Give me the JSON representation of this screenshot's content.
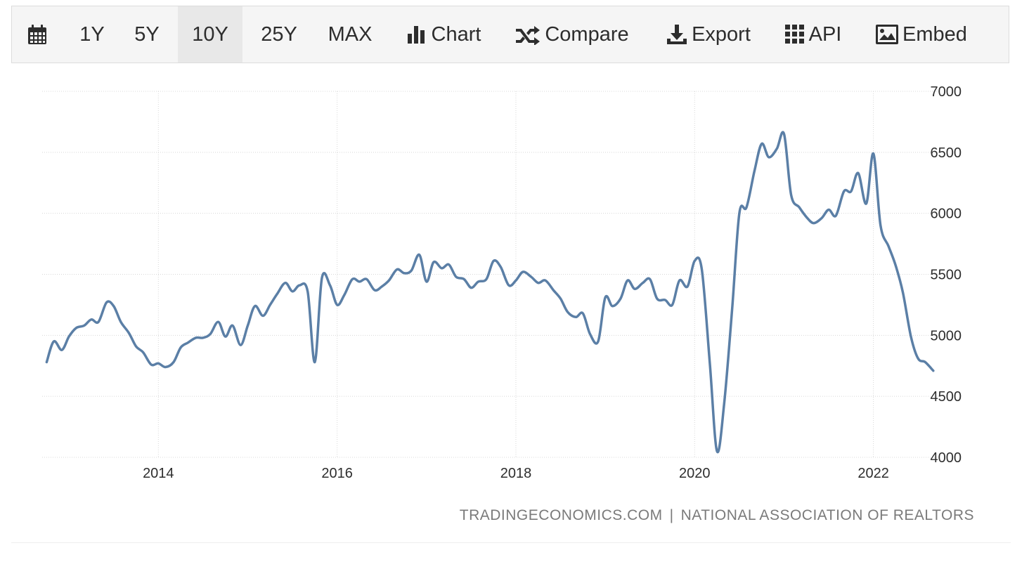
{
  "toolbar": {
    "calendar_icon": "calendar-icon",
    "ranges": [
      "1Y",
      "5Y",
      "10Y",
      "25Y",
      "MAX"
    ],
    "active_range": "10Y",
    "chart_label": "Chart",
    "compare_label": "Compare",
    "export_label": "Export",
    "api_label": "API",
    "embed_label": "Embed"
  },
  "source": {
    "site": "TRADINGECONOMICS.COM",
    "separator": "|",
    "org": "NATIONAL ASSOCIATION OF REALTORS"
  },
  "colors": {
    "line": "#5b7fa6",
    "grid": "#d8d8d8",
    "text": "#2d2d2d",
    "source": "#7a7a7a"
  },
  "chart_data": {
    "type": "line",
    "title": "",
    "xlabel": "",
    "ylabel": "",
    "ylim": [
      4000,
      7000
    ],
    "xlim": [
      2012.7,
      2022.75
    ],
    "yticks": [
      "4000",
      "4500",
      "5000",
      "5500",
      "6000",
      "6500",
      "7000"
    ],
    "xticks": [
      "2014",
      "2016",
      "2018",
      "2020",
      "2022"
    ],
    "grid": true,
    "y_axis_side": "right",
    "series": [
      {
        "name": "",
        "x": [
          2012.75,
          2012.83,
          2012.92,
          2013.0,
          2013.08,
          2013.17,
          2013.25,
          2013.33,
          2013.42,
          2013.5,
          2013.58,
          2013.67,
          2013.75,
          2013.83,
          2013.92,
          2014.0,
          2014.08,
          2014.17,
          2014.25,
          2014.33,
          2014.42,
          2014.5,
          2014.58,
          2014.67,
          2014.75,
          2014.83,
          2014.92,
          2015.0,
          2015.08,
          2015.17,
          2015.25,
          2015.33,
          2015.42,
          2015.5,
          2015.58,
          2015.67,
          2015.75,
          2015.83,
          2015.92,
          2016.0,
          2016.08,
          2016.17,
          2016.25,
          2016.33,
          2016.42,
          2016.5,
          2016.58,
          2016.67,
          2016.75,
          2016.83,
          2016.92,
          2017.0,
          2017.08,
          2017.17,
          2017.25,
          2017.33,
          2017.42,
          2017.5,
          2017.58,
          2017.67,
          2017.75,
          2017.83,
          2017.92,
          2018.0,
          2018.08,
          2018.17,
          2018.25,
          2018.33,
          2018.42,
          2018.5,
          2018.58,
          2018.67,
          2018.75,
          2018.83,
          2018.92,
          2019.0,
          2019.08,
          2019.17,
          2019.25,
          2019.33,
          2019.42,
          2019.5,
          2019.58,
          2019.67,
          2019.75,
          2019.83,
          2019.92,
          2020.0,
          2020.08,
          2020.17,
          2020.25,
          2020.33,
          2020.42,
          2020.5,
          2020.58,
          2020.67,
          2020.75,
          2020.83,
          2020.92,
          2021.0,
          2021.08,
          2021.17,
          2021.25,
          2021.33,
          2021.42,
          2021.5,
          2021.58,
          2021.67,
          2021.75,
          2021.83,
          2021.92,
          2022.0,
          2022.08,
          2022.17,
          2022.25,
          2022.33,
          2022.42,
          2022.5,
          2022.58,
          2022.67
        ],
        "values": [
          4780,
          4950,
          4880,
          4990,
          5060,
          5080,
          5130,
          5110,
          5270,
          5240,
          5110,
          5020,
          4910,
          4860,
          4760,
          4770,
          4740,
          4780,
          4900,
          4940,
          4980,
          4980,
          5010,
          5110,
          4990,
          5080,
          4920,
          5080,
          5240,
          5160,
          5250,
          5340,
          5430,
          5360,
          5410,
          5360,
          4780,
          5470,
          5410,
          5250,
          5330,
          5460,
          5440,
          5460,
          5370,
          5400,
          5450,
          5540,
          5510,
          5530,
          5660,
          5440,
          5600,
          5550,
          5580,
          5480,
          5460,
          5390,
          5440,
          5460,
          5610,
          5560,
          5410,
          5450,
          5520,
          5480,
          5430,
          5450,
          5370,
          5300,
          5190,
          5150,
          5180,
          5010,
          4950,
          5310,
          5240,
          5300,
          5450,
          5380,
          5430,
          5460,
          5300,
          5290,
          5250,
          5450,
          5400,
          5610,
          5540,
          4770,
          4050,
          4440,
          5220,
          6000,
          6050,
          6350,
          6570,
          6460,
          6530,
          6650,
          6150,
          6050,
          5970,
          5920,
          5960,
          6030,
          5980,
          6180,
          6180,
          6330,
          6080,
          6490,
          5900,
          5730,
          5570,
          5350,
          4990,
          4810,
          4780,
          4710
        ]
      }
    ]
  }
}
